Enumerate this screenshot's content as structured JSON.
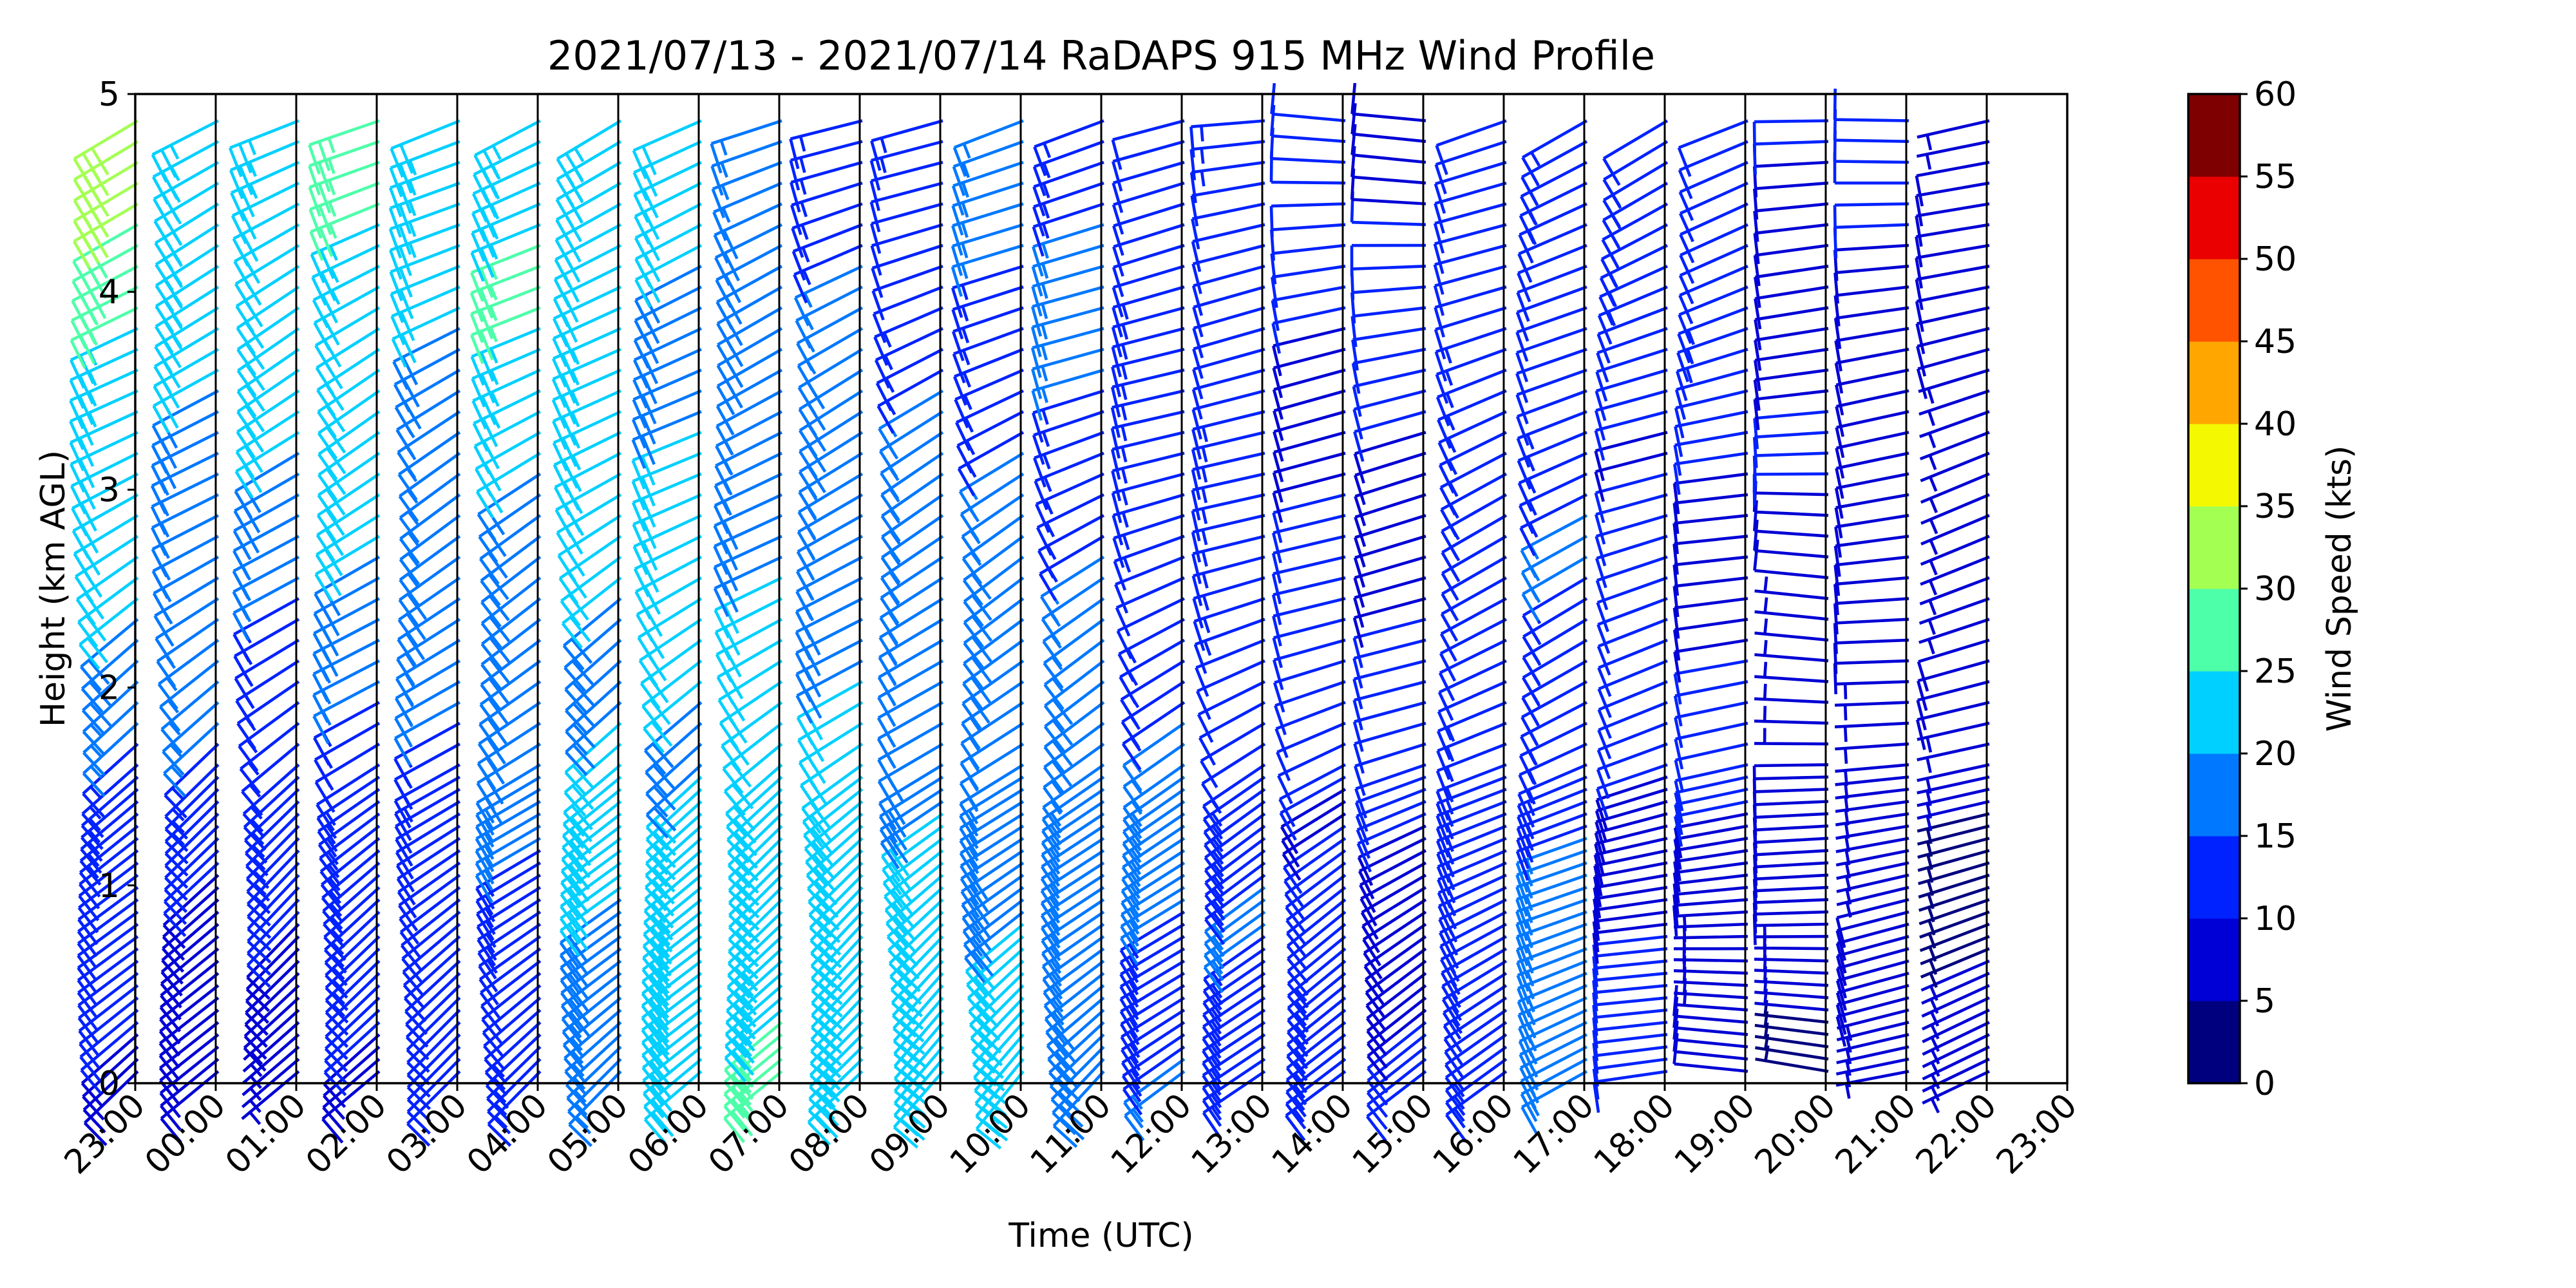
{
  "chart_data": {
    "type": "wind-barb",
    "title": "2021/07/13 - 2021/07/14 RaDAPS 915 MHz Wind Profile",
    "xlabel": "Time (UTC)",
    "ylabel": "Height (km AGL)",
    "ylim": [
      0,
      5
    ],
    "y_ticks": [
      "0",
      "1",
      "2",
      "3",
      "4",
      "5"
    ],
    "x_ticks": [
      "23:00",
      "00:00",
      "01:00",
      "02:00",
      "03:00",
      "04:00",
      "05:00",
      "06:00",
      "07:00",
      "08:00",
      "09:00",
      "10:00",
      "11:00",
      "12:00",
      "13:00",
      "14:00",
      "15:00",
      "16:00",
      "17:00",
      "18:00",
      "19:00",
      "20:00",
      "21:00",
      "22:00",
      "23:00"
    ],
    "colorbar": {
      "label": "Wind Speed (kts)",
      "ticks": [
        "0",
        "5",
        "10",
        "15",
        "20",
        "25",
        "30",
        "35",
        "40",
        "45",
        "50",
        "55",
        "60"
      ],
      "colors": [
        "#00007f",
        "#0000d6",
        "#0022ff",
        "#0078ff",
        "#00d0ff",
        "#4dffa9",
        "#a4ff53",
        "#f4f800",
        "#ffa700",
        "#ff5300",
        "#ea0000",
        "#7f0000"
      ]
    },
    "profiles": [
      {
        "time": "23:00",
        "low_speed": 8,
        "low_dir": 225,
        "high_speed": 30,
        "high_dir": 245
      },
      {
        "time": "00:00",
        "low_speed": 8,
        "low_dir": 225,
        "high_speed": 24,
        "high_dir": 245
      },
      {
        "time": "01:00",
        "low_speed": 8,
        "low_dir": 225,
        "high_speed": 24,
        "high_dir": 245
      },
      {
        "time": "02:00",
        "low_speed": 10,
        "low_dir": 230,
        "high_speed": 26,
        "high_dir": 245
      },
      {
        "time": "03:00",
        "low_speed": 10,
        "low_dir": 230,
        "high_speed": 22,
        "high_dir": 245
      },
      {
        "time": "04:00",
        "low_speed": 12,
        "low_dir": 230,
        "high_speed": 26,
        "high_dir": 245
      },
      {
        "time": "05:00",
        "low_speed": 18,
        "low_dir": 225,
        "high_speed": 24,
        "high_dir": 245
      },
      {
        "time": "06:00",
        "low_speed": 22,
        "low_dir": 225,
        "high_speed": 20,
        "high_dir": 250
      },
      {
        "time": "07:00",
        "low_speed": 24,
        "low_dir": 225,
        "high_speed": 16,
        "high_dir": 250
      },
      {
        "time": "08:00",
        "low_speed": 24,
        "low_dir": 225,
        "high_speed": 14,
        "high_dir": 250
      },
      {
        "time": "09:00",
        "low_speed": 22,
        "low_dir": 225,
        "high_speed": 12,
        "high_dir": 250
      },
      {
        "time": "10:00",
        "low_speed": 20,
        "low_dir": 225,
        "high_speed": 14,
        "high_dir": 250
      },
      {
        "time": "11:00",
        "low_speed": 18,
        "low_dir": 225,
        "high_speed": 14,
        "high_dir": 255
      },
      {
        "time": "12:00",
        "low_speed": 16,
        "low_dir": 230,
        "high_speed": 12,
        "high_dir": 260
      },
      {
        "time": "13:00",
        "low_speed": 14,
        "low_dir": 230,
        "high_speed": 12,
        "high_dir": 265
      },
      {
        "time": "14:00",
        "low_speed": 12,
        "low_dir": 230,
        "high_speed": 10,
        "high_dir": 270
      },
      {
        "time": "15:00",
        "low_speed": 10,
        "low_dir": 235,
        "high_speed": 10,
        "high_dir": 270
      },
      {
        "time": "16:00",
        "low_speed": 14,
        "low_dir": 240,
        "high_speed": 12,
        "high_dir": 250
      },
      {
        "time": "17:00",
        "low_speed": 16,
        "low_dir": 245,
        "high_speed": 12,
        "high_dir": 245
      },
      {
        "time": "18:00",
        "low_speed": 10,
        "low_dir": 260,
        "high_speed": 12,
        "high_dir": 245
      },
      {
        "time": "19:00",
        "low_speed": 8,
        "low_dir": 270,
        "high_speed": 12,
        "high_dir": 250
      },
      {
        "time": "20:00",
        "low_speed": 6,
        "low_dir": 275,
        "high_speed": 10,
        "high_dir": 265
      },
      {
        "time": "21:00",
        "low_speed": 6,
        "low_dir": 260,
        "high_speed": 10,
        "high_dir": 265
      },
      {
        "time": "22:00",
        "low_speed": 5,
        "low_dir": 250,
        "high_speed": 8,
        "high_dir": 255
      }
    ]
  }
}
